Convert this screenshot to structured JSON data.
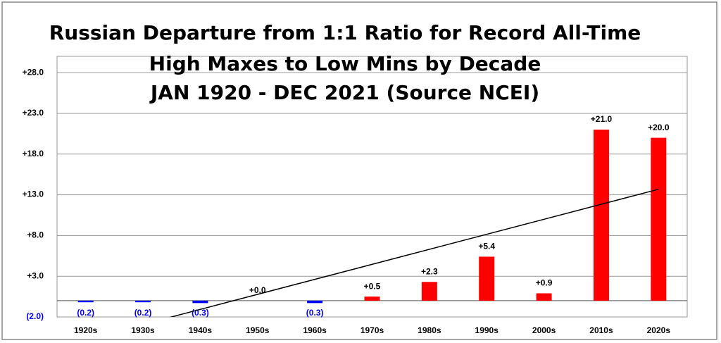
{
  "chart_data": {
    "type": "bar",
    "title_lines": [
      "Russian Departure from 1:1 Ratio for Record All-Time",
      "High Maxes to Low Mins by Decade",
      "JAN 1920 - DEC 2021 (Source NCEI)"
    ],
    "categories": [
      "1920s",
      "1930s",
      "1940s",
      "1950s",
      "1960s",
      "1970s",
      "1980s",
      "1990s",
      "2000s",
      "2010s",
      "2020s"
    ],
    "values": [
      -0.2,
      -0.2,
      -0.3,
      0.0,
      -0.3,
      0.5,
      2.3,
      5.4,
      0.9,
      21.0,
      20.0
    ],
    "value_labels": [
      "(0.2)",
      "(0.2)",
      "(0.3)",
      "+0.0",
      "(0.3)",
      "+0.5",
      "+2.3",
      "+5.4",
      "+0.9",
      "+21.0",
      "+20.0"
    ],
    "positive_color": "#ff0000",
    "negative_color": "#0000ff",
    "trendline": {
      "color": "#000000",
      "start": -4.76,
      "end": 13.68
    },
    "ylim": [
      -2,
      30
    ],
    "yticks": [
      {
        "value": -2,
        "label": "(2.0)"
      },
      {
        "value": 3,
        "label": "+3.0"
      },
      {
        "value": 8,
        "label": "+8.0"
      },
      {
        "value": 13,
        "label": "+13.0"
      },
      {
        "value": 18,
        "label": "+18.0"
      },
      {
        "value": 23,
        "label": "+23.0"
      },
      {
        "value": 28,
        "label": "+28.0"
      }
    ],
    "grid": true
  }
}
